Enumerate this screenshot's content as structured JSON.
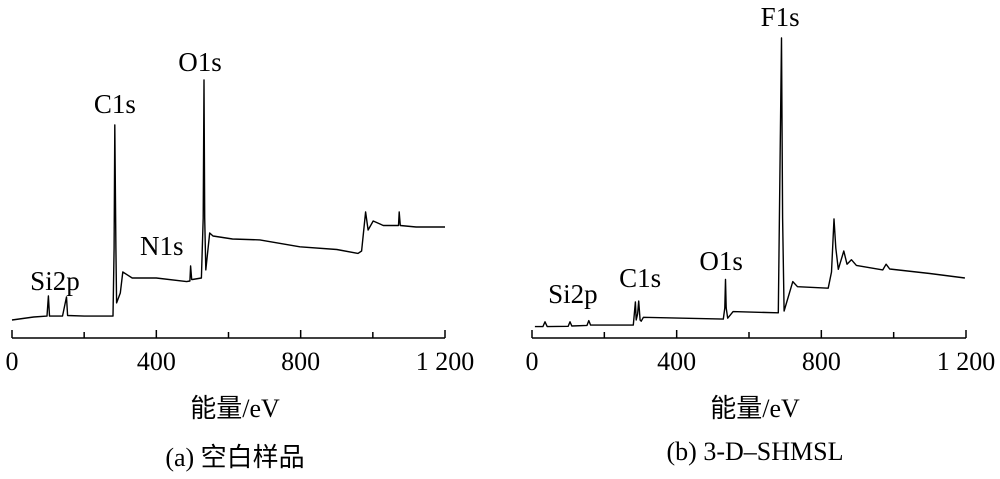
{
  "chart_data": [
    {
      "type": "line",
      "title": "(a) 空白样品",
      "xlabel": "能量/eV",
      "ylabel": "",
      "xlim": [
        0,
        1200
      ],
      "ylim": [
        0,
        105
      ],
      "xticks": [
        0,
        400,
        800,
        1200
      ],
      "xtick_labels": [
        "0",
        "400",
        "800",
        "1 200"
      ],
      "minor_xticks": [
        200,
        600,
        1000
      ],
      "grid": false,
      "series": [
        {
          "name": "blank",
          "x": [
            0,
            30,
            60,
            97,
            101,
            104,
            140,
            151,
            154,
            200,
            280,
            283,
            285,
            288,
            290,
            300,
            307,
            333,
            400,
            484,
            493,
            495,
            498,
            500,
            525,
            530,
            532,
            534,
            537,
            548,
            557,
            611,
            687,
            798,
            900,
            959,
            969,
            980,
            987,
            1001,
            1029,
            1071,
            1073,
            1076,
            1120,
            1200
          ],
          "y": [
            6,
            6.5,
            7,
            7.3,
            14,
            7.3,
            7.3,
            13.7,
            7.5,
            7.3,
            7.3,
            30,
            71,
            30,
            11.7,
            15,
            22,
            20,
            20,
            18.8,
            19,
            24,
            19.5,
            19.5,
            20,
            40,
            86,
            40,
            22.7,
            35,
            34,
            33,
            32.7,
            30.4,
            29.5,
            28.2,
            29,
            42,
            36,
            39,
            37.5,
            37.5,
            42,
            37.5,
            37,
            37
          ]
        }
      ],
      "annotations": [
        {
          "text": "Si2p",
          "x": 119,
          "y": 16
        },
        {
          "text": "C1s",
          "x": 285,
          "y": 75
        },
        {
          "text": "N1s",
          "x": 415,
          "y": 27.7
        },
        {
          "text": "O1s",
          "x": 521,
          "y": 89
        }
      ]
    },
    {
      "type": "line",
      "title": "(b) 3-D–SHMSL",
      "xlabel": "能量/eV",
      "ylabel": "",
      "xlim": [
        0,
        1200
      ],
      "ylim": [
        0,
        105
      ],
      "xticks": [
        0,
        400,
        800,
        1200
      ],
      "xtick_labels": [
        "0",
        "400",
        "800",
        "1 200"
      ],
      "minor_xticks": [
        200,
        600,
        1000
      ],
      "grid": false,
      "series": [
        {
          "name": "3-D-SHMSL",
          "x": [
            8,
            30,
            36,
            42,
            100,
            105,
            110,
            152,
            157,
            162,
            280,
            286,
            288,
            292,
            295,
            299,
            302,
            308,
            529,
            533,
            535,
            537,
            541,
            556,
            681,
            686,
            690,
            693,
            697,
            721,
            734,
            819,
            828,
            835,
            840,
            847,
            862,
            871,
            883,
            897,
            970,
            979,
            989,
            1100,
            1197
          ],
          "y": [
            3.8,
            3.8,
            5.4,
            3.8,
            3.9,
            5.4,
            4,
            4.2,
            5.8,
            4.3,
            4.3,
            12,
            6,
            8,
            12.3,
            6,
            5.6,
            6.9,
            6.3,
            10,
            19.5,
            10,
            6.6,
            8.8,
            8.4,
            60,
            100,
            40,
            9,
            18.8,
            17.1,
            16.6,
            22,
            39.7,
            30,
            22.9,
            29,
            24.6,
            26.1,
            24.2,
            22.7,
            24.6,
            23,
            21.5,
            20
          ]
        }
      ],
      "annotations": [
        {
          "text": "Si2p",
          "x": 113,
          "y": 11.7
        },
        {
          "text": "C1s",
          "x": 299,
          "y": 17
        },
        {
          "text": "O1s",
          "x": 523,
          "y": 22.7
        },
        {
          "text": "F1s",
          "x": 686,
          "y": 104
        }
      ]
    }
  ]
}
